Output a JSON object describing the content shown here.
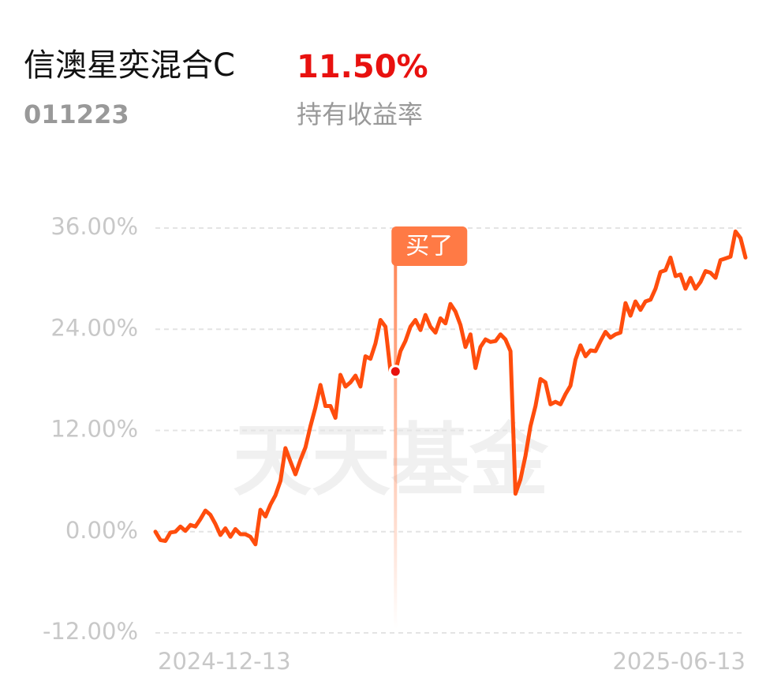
{
  "header": {
    "title": "信澳星奕混合C",
    "return": "11.50%",
    "code": "011223",
    "return_label": "持有收益率"
  },
  "chart_data": {
    "type": "line",
    "watermark": "天天基金",
    "x_labels": [
      "2024-12-13",
      "2025-06-13"
    ],
    "series": [
      {
        "name": "持有收益率",
        "color": "#ff4d0d",
        "values": [
          0,
          -1.0,
          -1.1,
          -0.1,
          0,
          0.6,
          0.1,
          0.8,
          0.6,
          1.5,
          2.5,
          2.0,
          0.9,
          -0.4,
          0.4,
          -0.6,
          0.3,
          -0.3,
          -0.3,
          -0.6,
          -1.5,
          2.6,
          1.8,
          3.2,
          4.3,
          6.0,
          9.9,
          8.3,
          6.8,
          8.5,
          10.0,
          12.5,
          14.7,
          17.4,
          14.9,
          14.9,
          13.5,
          18.6,
          17.2,
          17.7,
          18.5,
          17.2,
          20.8,
          20.5,
          22.3,
          25.1,
          24.3,
          19.1,
          19.0,
          21.4,
          22.6,
          24.3,
          25.1,
          23.9,
          25.7,
          24.3,
          23.6,
          25.3,
          24.7,
          27.0,
          26.1,
          24.5,
          21.9,
          23.4,
          19.4,
          21.9,
          22.8,
          22.5,
          22.6,
          23.4,
          22.8,
          21.4,
          4.5,
          6.2,
          9.0,
          12.5,
          14.9,
          18.1,
          17.7,
          15.1,
          15.4,
          15.1,
          16.3,
          17.3,
          20.4,
          22.1,
          20.8,
          21.5,
          21.4,
          22.6,
          23.7,
          23.0,
          23.4,
          23.6,
          27.1,
          25.6,
          27.3,
          26.3,
          27.3,
          27.5,
          28.8,
          30.8,
          31.0,
          32.5,
          30.3,
          30.5,
          28.8,
          30.1,
          28.8,
          29.6,
          30.9,
          30.7,
          30.1,
          32.2,
          32.4,
          32.6,
          35.6,
          34.8,
          32.5
        ]
      }
    ],
    "annotation": {
      "text": "买了",
      "index": 48,
      "color": "#ff7a45"
    },
    "ylim": [
      -12,
      36
    ],
    "yticks": [
      {
        "value": -12,
        "label": "-12.00%"
      },
      {
        "value": 0,
        "label": "0.00%"
      },
      {
        "value": 12,
        "label": "12.00%"
      },
      {
        "value": 24,
        "label": "24.00%"
      },
      {
        "value": 36,
        "label": "36.00%"
      }
    ],
    "grid": true
  }
}
